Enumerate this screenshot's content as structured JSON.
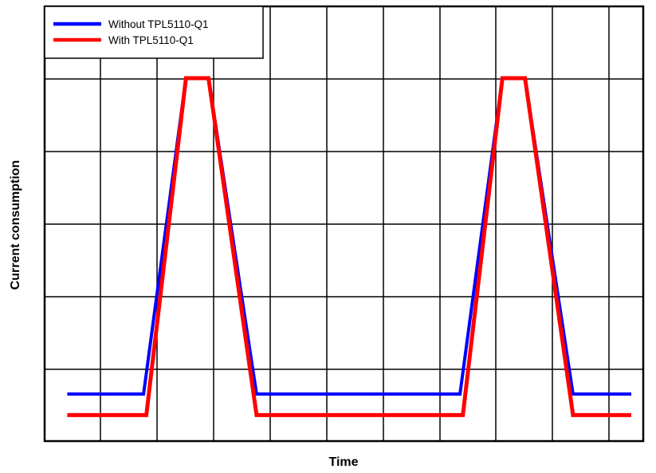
{
  "chart_data": {
    "type": "line",
    "title": "",
    "xlabel": "Time",
    "ylabel": "Current consumption",
    "grid": true,
    "legend_position": "top-left",
    "xlim": [
      0,
      10
    ],
    "ylim": [
      0,
      5
    ],
    "series": [
      {
        "name": "Without TPL5110-Q1",
        "color": "#0000ff",
        "x": [
          0.4,
          1.75,
          2.5,
          2.9,
          3.75,
          7.35,
          8.1,
          8.5,
          9.35,
          10.4
        ],
        "y": [
          0.5,
          0.5,
          5.0,
          5.0,
          0.5,
          0.5,
          5.0,
          5.0,
          0.5,
          0.5
        ]
      },
      {
        "name": "With TPL5110-Q1",
        "color": "#ff0000",
        "x": [
          0.4,
          1.8,
          2.5,
          2.9,
          3.75,
          7.4,
          8.1,
          8.5,
          9.35,
          10.4
        ],
        "y": [
          0.2,
          0.2,
          5.0,
          5.0,
          0.2,
          0.2,
          5.0,
          5.0,
          0.2,
          0.2
        ]
      }
    ]
  }
}
